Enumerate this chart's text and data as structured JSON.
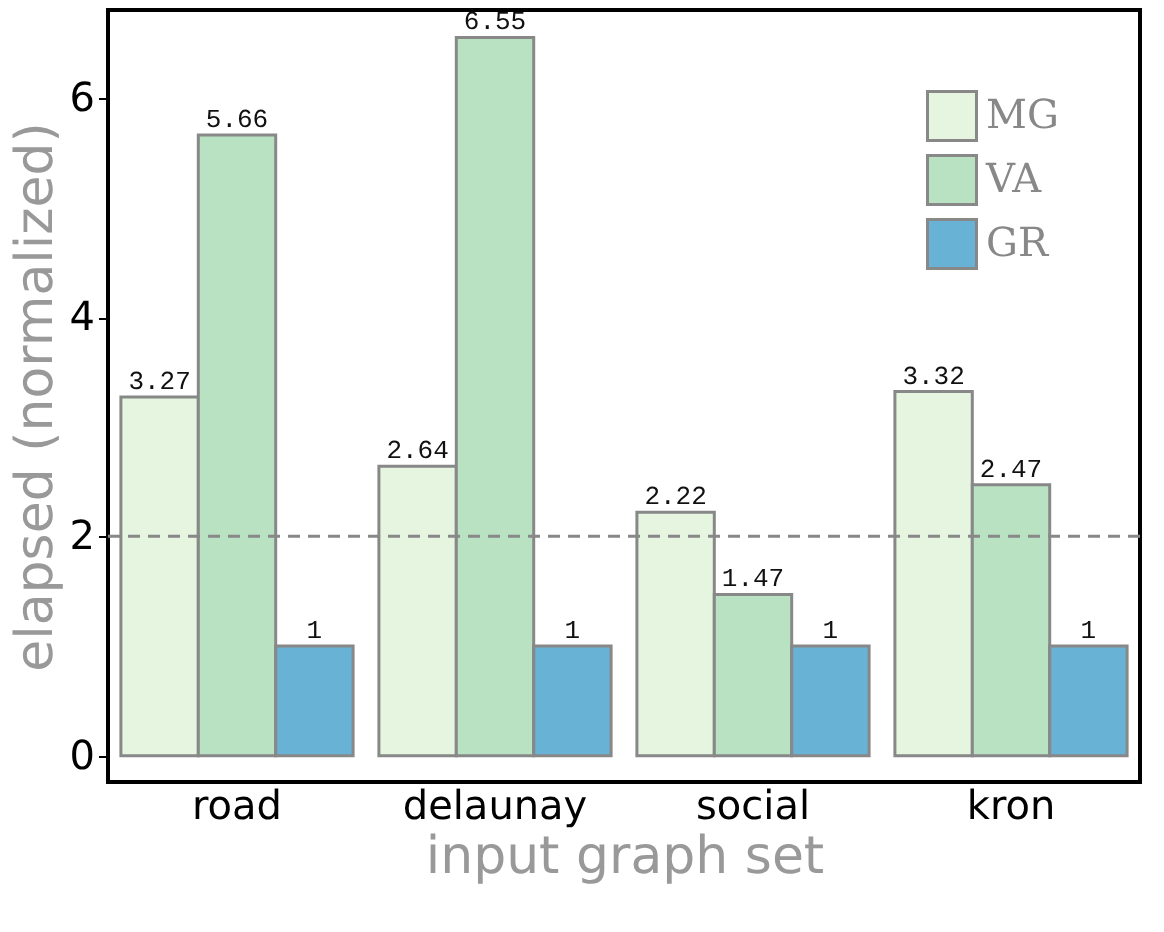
{
  "chart_data": {
    "type": "bar",
    "xlabel": "input graph set",
    "ylabel": "elapsed (normalized)",
    "categories": [
      "road",
      "delaunay",
      "social",
      "kron"
    ],
    "series": [
      {
        "name": "MG",
        "color": "#e5f5e0",
        "values": [
          3.27,
          2.64,
          2.22,
          3.32
        ]
      },
      {
        "name": "VA",
        "color": "#b8e2c2",
        "values": [
          5.66,
          6.55,
          1.47,
          2.47
        ]
      },
      {
        "name": "GR",
        "color": "#67b2d5",
        "values": [
          1,
          1,
          1,
          1
        ]
      }
    ],
    "ylim": [
      -0.24,
      6.8
    ],
    "yticks": [
      0,
      2,
      4,
      6
    ],
    "ref_lines": [
      {
        "axis": "y",
        "value": 2,
        "line_style": "dashed"
      }
    ],
    "data_labels": true,
    "legend": "top right"
  }
}
